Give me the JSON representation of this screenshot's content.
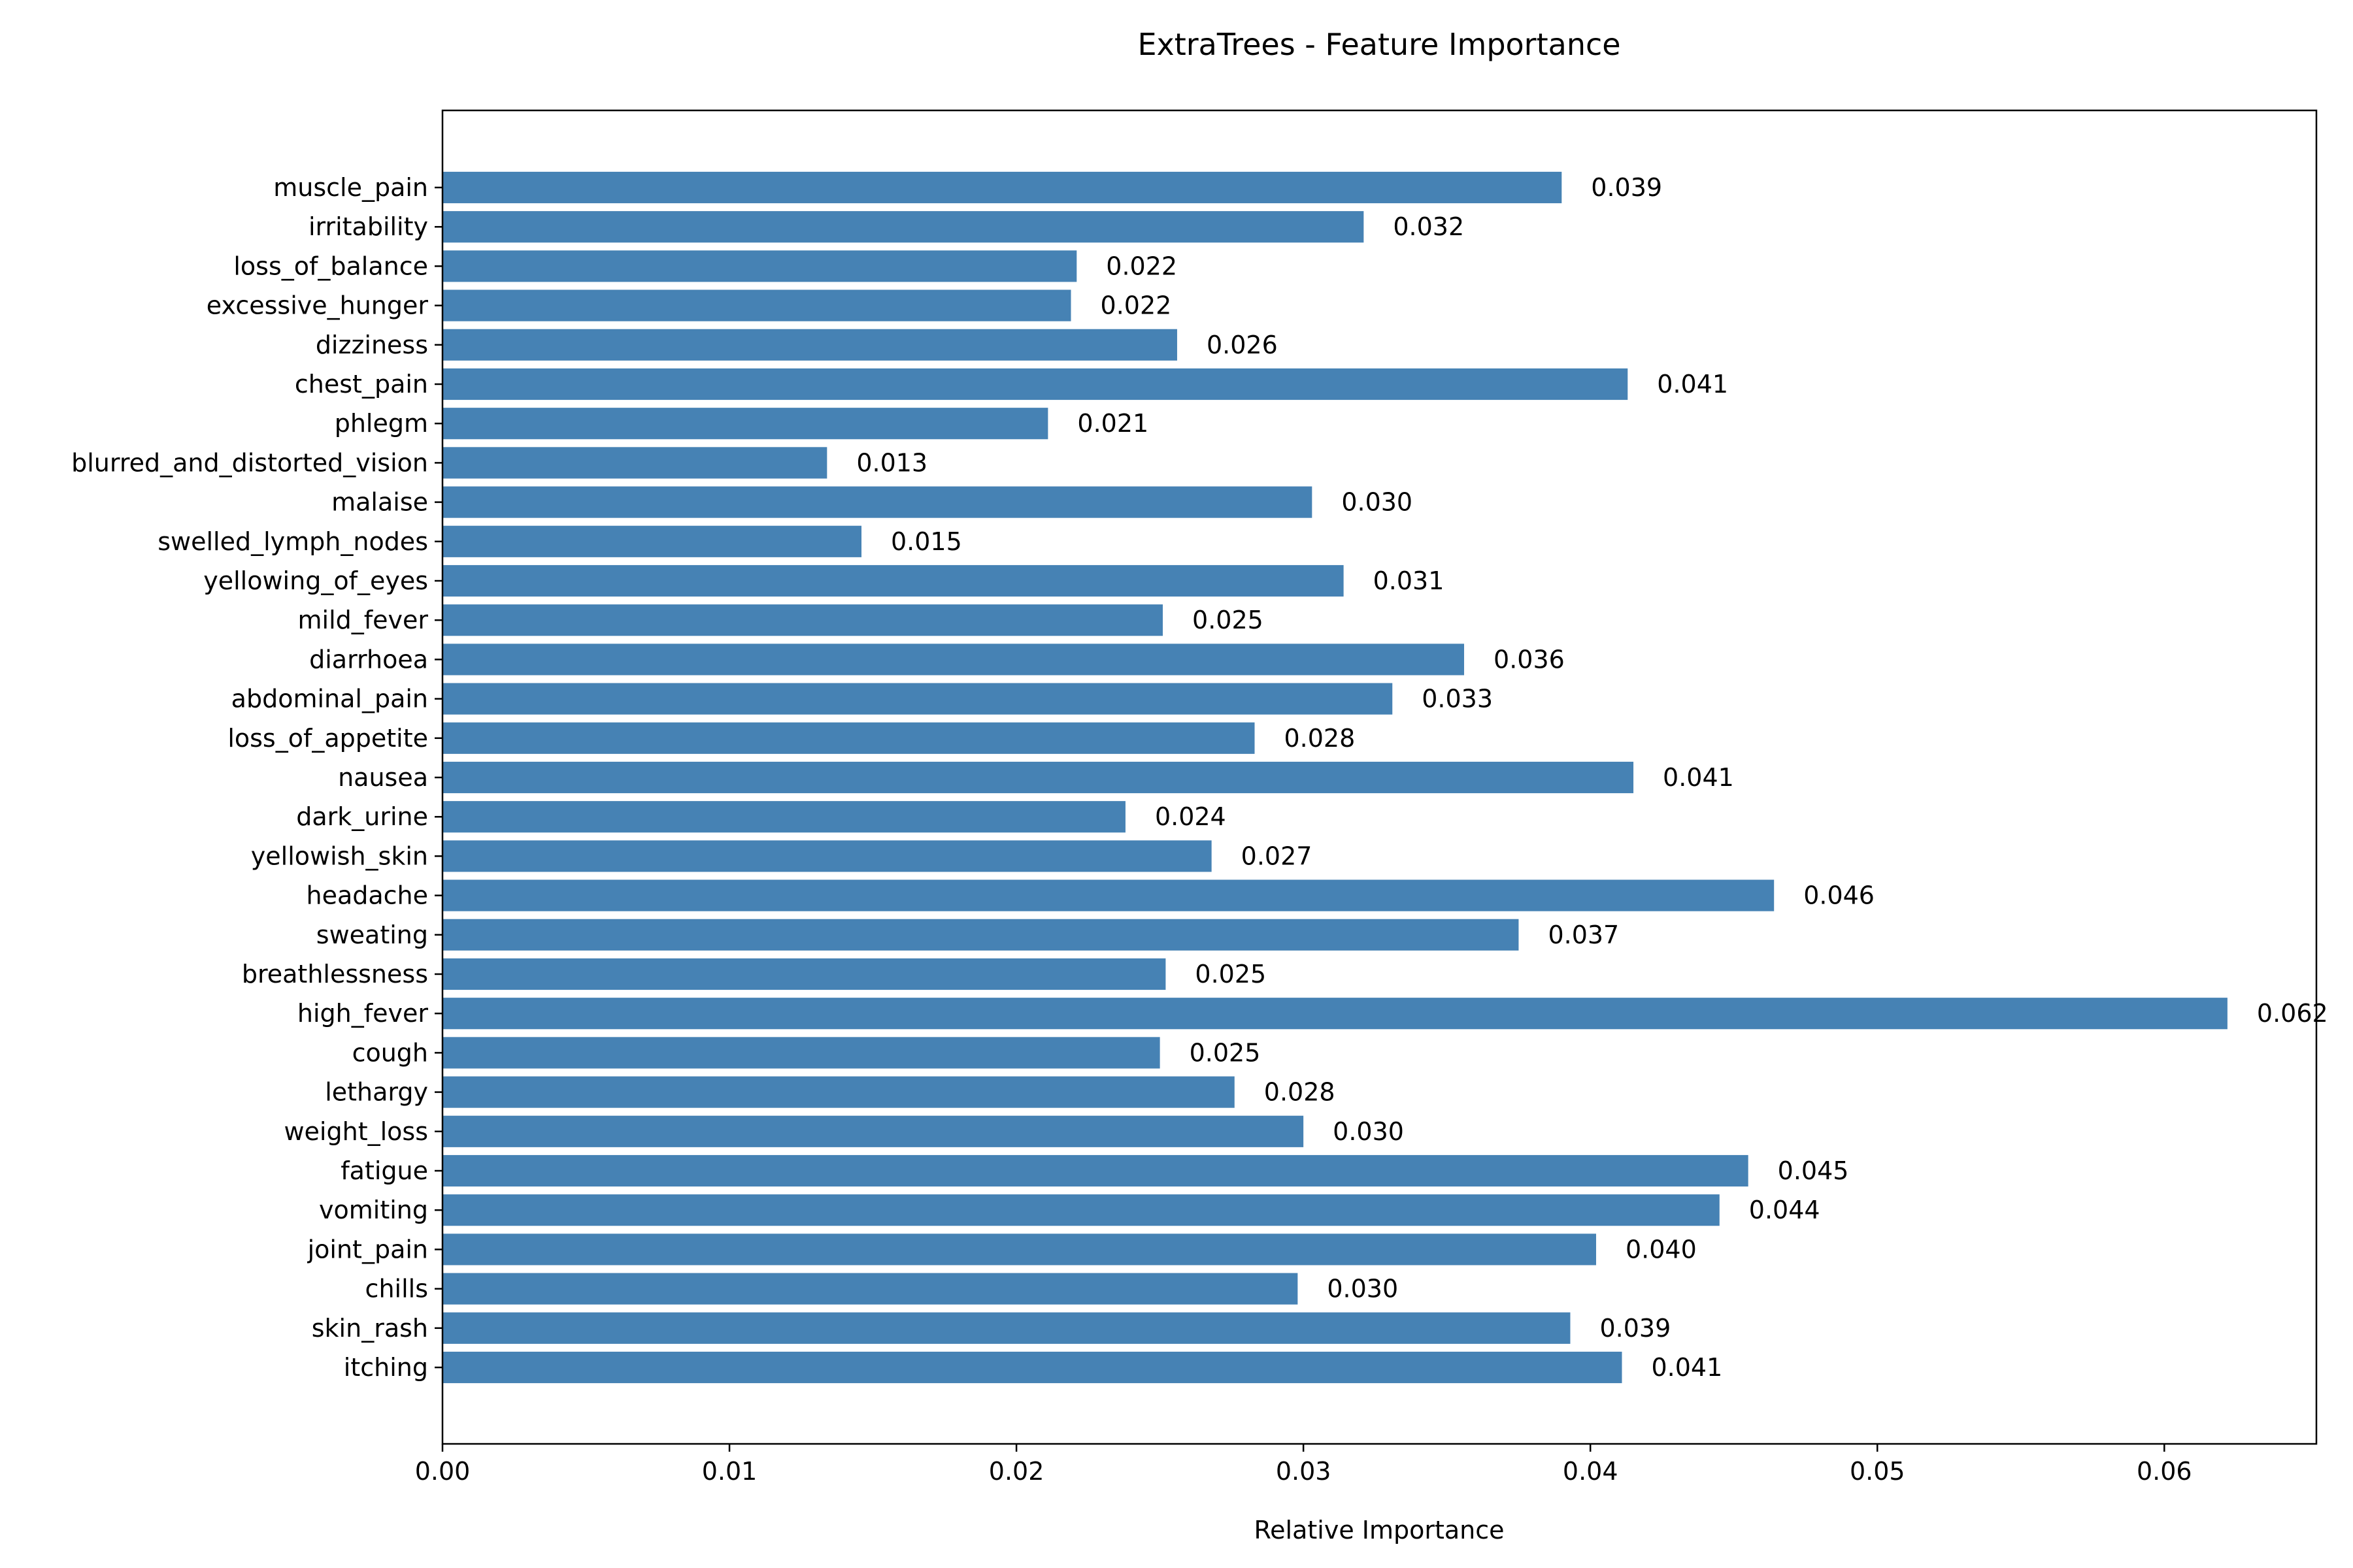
{
  "chart_data": {
    "type": "bar",
    "orientation": "horizontal",
    "title": "ExtraTrees - Feature Importance",
    "xlabel": "Relative Importance",
    "ylabel": "",
    "xlim": [
      0,
      0.0653
    ],
    "xticks": [
      0.0,
      0.01,
      0.02,
      0.03,
      0.04,
      0.05,
      0.06
    ],
    "xtick_labels": [
      "0.00",
      "0.01",
      "0.02",
      "0.03",
      "0.04",
      "0.05",
      "0.06"
    ],
    "bar_color": "#4682b4",
    "grid": false,
    "legend": "none",
    "categories": [
      "itching",
      "skin_rash",
      "chills",
      "joint_pain",
      "vomiting",
      "fatigue",
      "weight_loss",
      "lethargy",
      "cough",
      "high_fever",
      "breathlessness",
      "sweating",
      "headache",
      "yellowish_skin",
      "dark_urine",
      "nausea",
      "loss_of_appetite",
      "abdominal_pain",
      "diarrhoea",
      "mild_fever",
      "yellowing_of_eyes",
      "swelled_lymph_nodes",
      "malaise",
      "blurred_and_distorted_vision",
      "phlegm",
      "chest_pain",
      "dizziness",
      "excessive_hunger",
      "loss_of_balance",
      "irritability",
      "muscle_pain"
    ],
    "values": [
      0.0411,
      0.0393,
      0.0298,
      0.0402,
      0.0445,
      0.0455,
      0.03,
      0.0276,
      0.025,
      0.0622,
      0.0252,
      0.0375,
      0.0464,
      0.0268,
      0.0238,
      0.0415,
      0.0283,
      0.0331,
      0.0356,
      0.0251,
      0.0314,
      0.0146,
      0.0303,
      0.0134,
      0.0211,
      0.0413,
      0.0256,
      0.0219,
      0.0221,
      0.0321,
      0.039
    ],
    "value_labels": [
      "0.041",
      "0.039",
      "0.030",
      "0.040",
      "0.044",
      "0.045",
      "0.030",
      "0.028",
      "0.025",
      "0.062",
      "0.025",
      "0.037",
      "0.046",
      "0.027",
      "0.024",
      "0.041",
      "0.028",
      "0.033",
      "0.036",
      "0.025",
      "0.031",
      "0.015",
      "0.030",
      "0.013",
      "0.021",
      "0.041",
      "0.026",
      "0.022",
      "0.022",
      "0.032",
      "0.039"
    ]
  }
}
